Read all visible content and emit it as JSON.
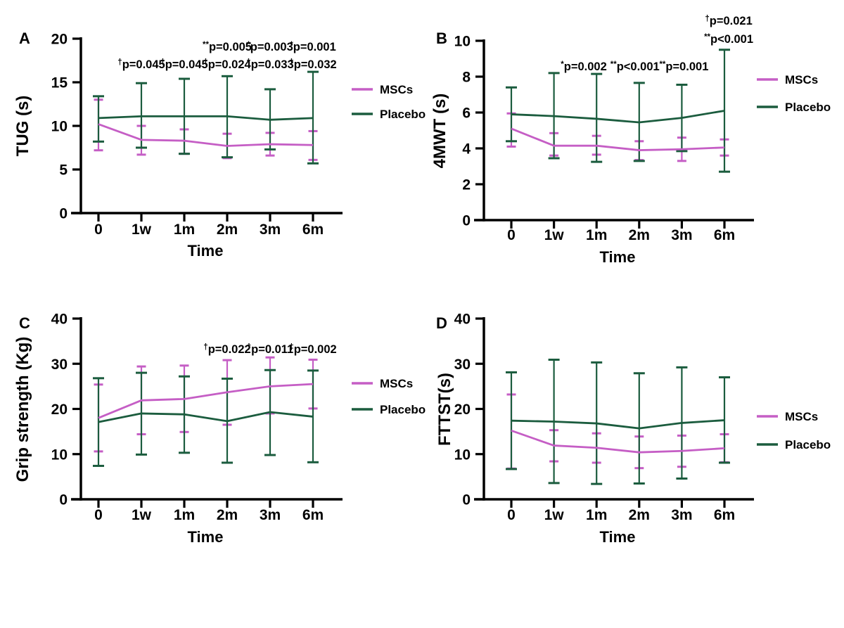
{
  "page": {
    "background": "#ffffff"
  },
  "colors": {
    "mscs": "#c55ec5",
    "placebo": "#1b5c3e",
    "axis": "#000000",
    "text": "#000000"
  },
  "legend_labels": {
    "mscs": "MSCs",
    "placebo": "Placebo"
  },
  "time_axis": {
    "label": "Time",
    "categories": [
      "0",
      "1w",
      "1m",
      "2m",
      "3m",
      "6m"
    ]
  },
  "chart_data": [
    {
      "id": "A",
      "type": "line",
      "panel_label": "A",
      "ylabel": "TUG (s)",
      "xlabel": "Time",
      "ylim": [
        0,
        20
      ],
      "yticks": [
        0,
        5,
        10,
        15,
        20
      ],
      "categories": [
        "0",
        "1w",
        "1m",
        "2m",
        "3m",
        "6m"
      ],
      "grid": false,
      "legend_position": "right",
      "series": [
        {
          "name": "MSCs",
          "color": "#c55ec5",
          "values": [
            10.2,
            8.4,
            8.3,
            7.7,
            7.9,
            7.8
          ],
          "err_low": [
            7.2,
            6.7,
            6.8,
            6.3,
            6.6,
            6.1
          ],
          "err_high": [
            13.0,
            10.0,
            9.6,
            9.1,
            9.2,
            9.4
          ]
        },
        {
          "name": "Placebo",
          "color": "#1b5c3e",
          "values": [
            10.9,
            11.1,
            11.1,
            11.1,
            10.7,
            10.9
          ],
          "err_low": [
            8.2,
            7.5,
            6.8,
            6.4,
            7.3,
            5.7
          ],
          "err_high": [
            13.4,
            14.9,
            15.4,
            15.7,
            14.2,
            16.2
          ]
        }
      ],
      "annotations": [
        {
          "sup": "**",
          "text": "p=0.005",
          "cat": 3,
          "row": "r1"
        },
        {
          "sup": "*",
          "text": "p=0.003",
          "cat": 4,
          "row": "r1"
        },
        {
          "sup": "*",
          "text": "p=0.001",
          "cat": 5,
          "row": "r1"
        },
        {
          "sup": "†",
          "text": "p=0.045",
          "cat": 1,
          "row": "r2"
        },
        {
          "sup": "†",
          "text": "p=0.045",
          "cat": 2,
          "row": "r2"
        },
        {
          "sup": "†",
          "text": "p=0.024",
          "cat": 3,
          "row": "r2"
        },
        {
          "sup": "†",
          "text": "p=0.033",
          "cat": 4,
          "row": "r2"
        },
        {
          "sup": "†",
          "text": "p=0.032",
          "cat": 5,
          "row": "r2"
        }
      ]
    },
    {
      "id": "B",
      "type": "line",
      "panel_label": "B",
      "ylabel": "4MWT (s)",
      "xlabel": "Time",
      "ylim": [
        0,
        10
      ],
      "yticks": [
        0,
        2,
        4,
        6,
        8,
        10
      ],
      "categories": [
        "0",
        "1w",
        "1m",
        "2m",
        "3m",
        "6m"
      ],
      "grid": false,
      "legend_position": "right",
      "series": [
        {
          "name": "MSCs",
          "color": "#c55ec5",
          "values": [
            5.1,
            4.15,
            4.15,
            3.9,
            3.95,
            4.05
          ],
          "err_low": [
            4.1,
            3.6,
            3.65,
            3.35,
            3.3,
            3.6
          ],
          "err_high": [
            5.95,
            4.85,
            4.7,
            4.4,
            4.6,
            4.5
          ]
        },
        {
          "name": "Placebo",
          "color": "#1b5c3e",
          "values": [
            5.9,
            5.8,
            5.65,
            5.45,
            5.7,
            6.1
          ],
          "err_low": [
            4.4,
            3.45,
            3.25,
            3.3,
            3.85,
            2.7
          ],
          "err_high": [
            7.4,
            8.2,
            8.15,
            7.65,
            7.55,
            9.5
          ]
        }
      ],
      "annotations": [
        {
          "sup": "*",
          "text": "p=0.002",
          "cat": 1.7,
          "row": "mid"
        },
        {
          "sup": "**",
          "text": "p<0.001",
          "cat": 2.9,
          "row": "mid"
        },
        {
          "sup": "**",
          "text": "p=0.001",
          "cat": 4.05,
          "row": "mid"
        },
        {
          "sup": "†",
          "text": "p=0.021",
          "cat": 5.1,
          "row": "top1"
        },
        {
          "sup": "**",
          "text": "p<0.001",
          "cat": 5.1,
          "row": "top2"
        }
      ]
    },
    {
      "id": "C",
      "type": "line",
      "panel_label": "C",
      "ylabel": "Grip strength (Kg)",
      "xlabel": "Time",
      "ylim": [
        0,
        40
      ],
      "yticks": [
        0,
        10,
        20,
        30,
        40
      ],
      "categories": [
        "0",
        "1w",
        "1m",
        "2m",
        "3m",
        "6m"
      ],
      "grid": false,
      "legend_position": "right",
      "series": [
        {
          "name": "MSCs",
          "color": "#c55ec5",
          "values": [
            18.0,
            21.9,
            22.2,
            23.7,
            25.0,
            25.5
          ],
          "err_low": [
            10.6,
            14.4,
            14.9,
            16.5,
            19.0,
            20.1
          ],
          "err_high": [
            25.4,
            29.4,
            29.6,
            30.8,
            31.4,
            30.9
          ]
        },
        {
          "name": "Placebo",
          "color": "#1b5c3e",
          "values": [
            17.1,
            19.0,
            18.8,
            17.3,
            19.3,
            18.3
          ],
          "err_low": [
            7.4,
            9.9,
            10.3,
            8.1,
            9.8,
            8.2
          ],
          "err_high": [
            26.8,
            28.0,
            27.2,
            26.7,
            28.6,
            28.5
          ]
        }
      ],
      "annotations": [
        {
          "sup": "†",
          "text": "p=0.022",
          "cat": 3,
          "row": "r1"
        },
        {
          "sup": "†",
          "text": "p=0.011",
          "cat": 4,
          "row": "r1"
        },
        {
          "sup": "‡",
          "text": "p=0.002",
          "cat": 5,
          "row": "r1"
        }
      ]
    },
    {
      "id": "D",
      "type": "line",
      "panel_label": "D",
      "ylabel": "FTTST(s)",
      "xlabel": "Time",
      "ylim": [
        0,
        40
      ],
      "yticks": [
        0,
        10,
        20,
        30,
        40
      ],
      "categories": [
        "0",
        "1w",
        "1m",
        "2m",
        "3m",
        "6m"
      ],
      "grid": false,
      "legend_position": "right",
      "series": [
        {
          "name": "MSCs",
          "color": "#c55ec5",
          "values": [
            15.2,
            11.9,
            11.4,
            10.4,
            10.7,
            11.3
          ],
          "err_low": [
            6.8,
            8.4,
            8.1,
            6.9,
            7.2,
            8.2
          ],
          "err_high": [
            23.2,
            15.3,
            14.6,
            13.9,
            14.1,
            14.4
          ]
        },
        {
          "name": "Placebo",
          "color": "#1b5c3e",
          "values": [
            17.4,
            17.2,
            16.8,
            15.7,
            16.9,
            17.5
          ],
          "err_low": [
            6.7,
            3.6,
            3.4,
            3.5,
            4.6,
            8.1
          ],
          "err_high": [
            28.1,
            30.9,
            30.3,
            27.9,
            29.2,
            27.0
          ]
        }
      ],
      "annotations": []
    }
  ]
}
